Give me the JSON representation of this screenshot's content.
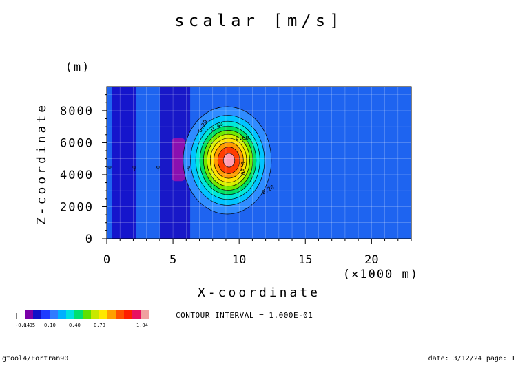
{
  "chart_data": {
    "type": "heatmap",
    "title": "scalar [m/s]",
    "xlabel": "X-coordinate",
    "ylabel": "Z-coordinate",
    "x_unit": "(×1000 m)",
    "y_unit": "(m)",
    "xlim": [
      0,
      23
    ],
    "ylim": [
      0,
      9500
    ],
    "x_ticks": [
      "0",
      "5",
      "10",
      "15",
      "20"
    ],
    "y_ticks": [
      "0",
      "2000",
      "4000",
      "6000",
      "8000"
    ],
    "grid": true,
    "contour_interval_text": "CONTOUR INTERVAL = 1.000E-01",
    "contour_labels": [
      "0.20",
      "0.40",
      "0.60",
      "0.80",
      "0.20"
    ],
    "band_labels": [
      "-0",
      "-0",
      "-0",
      "-0"
    ],
    "colorbar": {
      "tick_labels": [
        "-0.14",
        "-0.05",
        "0.10",
        "0.40",
        "0.70",
        "1.04"
      ],
      "colors": [
        "#7a00a8",
        "#1010c8",
        "#1e3cff",
        "#2f7bff",
        "#00b0ff",
        "#00e0e0",
        "#00e070",
        "#60e000",
        "#c8e800",
        "#ffe800",
        "#ffa000",
        "#ff5000",
        "#ff1e00",
        "#e81060",
        "#f0a0a0"
      ]
    },
    "blob": {
      "center_x": 9.1,
      "center_z": 4900,
      "peak": 1.04
    },
    "background_value": 0.0,
    "negative_bands": [
      {
        "x_from": 0.4,
        "x_to": 2.2,
        "value": -0.05
      },
      {
        "x_from": 4.0,
        "x_to": 6.3,
        "value": -0.05
      },
      {
        "x_from": 4.9,
        "x_to": 5.9,
        "z_from": 3600,
        "z_to": 6300,
        "value": -0.14
      }
    ]
  },
  "footer": {
    "left": "gtool4/Fortran90",
    "right": "date: 3/12/24 page: 1"
  }
}
